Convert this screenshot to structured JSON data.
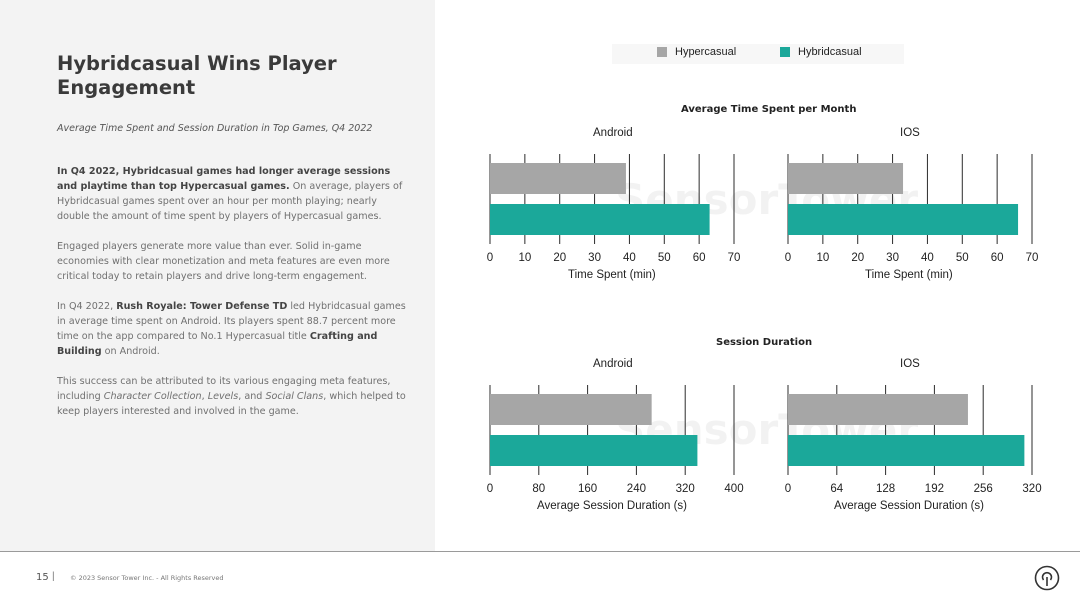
{
  "title": "Hybridcasual Wins Player Engagement",
  "subtitle": "Average Time Spent and Session Duration in Top Games, Q4 2022",
  "paragraph1": {
    "bold": "In Q4 2022, Hybridcasual games had longer average sessions and playtime than top Hypercasual games.",
    "text": " On average, players of Hybridcasual games spent over an hour per month playing; nearly double the amount of time spent by players of Hypercasual games."
  },
  "paragraph2": "Engaged players generate more value than ever. Solid in-game economies with clear monetization and meta features are even more critical today to retain players and drive long-term engagement.",
  "paragraph3": {
    "t1": "In Q4 2022, ",
    "b1": "Rush Royale: Tower Defense TD",
    "t2": " led Hybridcasual games in average time spent on Android. Its players spent 88.7 percent more time on the app compared to No.1 Hypercasual title ",
    "b2": "Crafting and Building",
    "t3": " on Android."
  },
  "paragraph4": {
    "t1": "This success can be attributed to its various engaging meta features, including ",
    "i1": "Character Collection",
    "t2": ", ",
    "i2": "Levels",
    "t3": ", and ",
    "i3": "Social Clans",
    "t4": ", which helped to keep players interested and involved in the game."
  },
  "footer": {
    "page": "15",
    "separator": "|",
    "copyright": "© 2023 Sensor Tower Inc. - All Rights Reserved"
  },
  "watermark": "SensorTower",
  "colors": {
    "hypercasual": "#a6a6a6",
    "hybridcasual": "#1ba89a"
  },
  "chart_data": [
    {
      "type": "bar",
      "orientation": "horizontal",
      "title": "Average Time Spent per Month",
      "legend": [
        "Hypercasual",
        "Hybridcasual"
      ],
      "legend_position": "top",
      "panels": [
        {
          "label": "Android",
          "series": [
            {
              "name": "Hypercasual",
              "value": 39
            },
            {
              "name": "Hybridcasual",
              "value": 63
            }
          ],
          "xlim": [
            0,
            70
          ],
          "ticks": [
            "0",
            "10",
            "20",
            "30",
            "40",
            "50",
            "60",
            "70"
          ],
          "tick_values": [
            0,
            10,
            20,
            30,
            40,
            50,
            60,
            70
          ],
          "xlabel": "Time Spent (min)"
        },
        {
          "label": "IOS",
          "series": [
            {
              "name": "Hypercasual",
              "value": 33
            },
            {
              "name": "Hybridcasual",
              "value": 66
            }
          ],
          "xlim": [
            0,
            70
          ],
          "ticks": [
            "0",
            "10",
            "20",
            "30",
            "40",
            "50",
            "60",
            "70"
          ],
          "tick_values": [
            0,
            10,
            20,
            30,
            40,
            50,
            60,
            70
          ],
          "xlabel": "Time Spent (min)"
        }
      ]
    },
    {
      "type": "bar",
      "orientation": "horizontal",
      "title": "Session Duration",
      "legend": [
        "Hypercasual",
        "Hybridcasual"
      ],
      "panels": [
        {
          "label": "Android",
          "series": [
            {
              "name": "Hypercasual",
              "value": 265
            },
            {
              "name": "Hybridcasual",
              "value": 340
            }
          ],
          "xlim": [
            0,
            400
          ],
          "ticks": [
            "0",
            "80",
            "160",
            "240",
            "320",
            "400"
          ],
          "tick_values": [
            0,
            80,
            160,
            240,
            320,
            400
          ],
          "xlabel": "Average Session Duration (s)"
        },
        {
          "label": "IOS",
          "series": [
            {
              "name": "Hypercasual",
              "value": 236
            },
            {
              "name": "Hybridcasual",
              "value": 310
            }
          ],
          "xlim": [
            0,
            320
          ],
          "ticks": [
            "0",
            "64",
            "128",
            "192",
            "256",
            "320"
          ],
          "tick_values": [
            0,
            64,
            128,
            192,
            256,
            320
          ],
          "xlabel": "Average Session Duration (s)"
        }
      ]
    }
  ]
}
